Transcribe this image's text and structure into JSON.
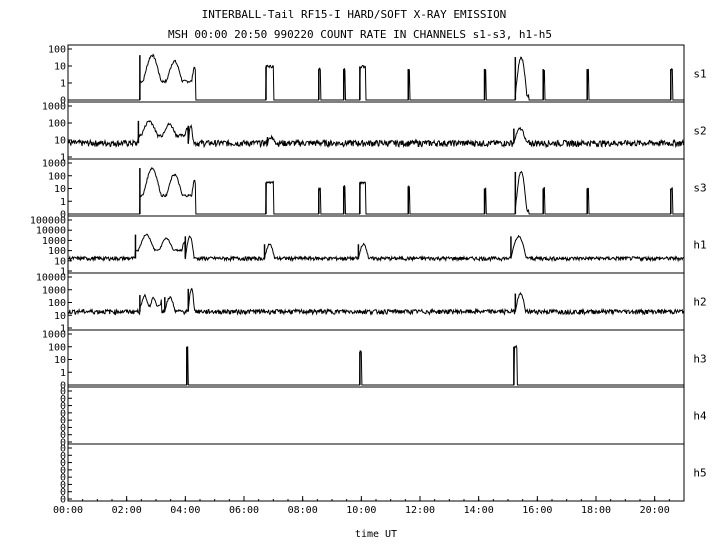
{
  "chart_data": {
    "type": "line",
    "title": "INTERBALL-Tail RF15-I HARD/SOFT X-RAY EMISSION",
    "subtitle": "MSH 00:00 20:50 990220  COUNT RATE IN CHANNELS s1-s3, h1-h5",
    "xlabel": "time UT",
    "x_ticks": [
      "00:00",
      "02:00",
      "04:00",
      "06:00",
      "08:00",
      "10:00",
      "12:00",
      "14:00",
      "16:00",
      "18:00",
      "20:00"
    ],
    "xlim_hours": [
      0,
      21
    ],
    "y_scale": "log",
    "grid": false,
    "panels": [
      {
        "name": "s1",
        "yticks": [
          "100",
          "10",
          "1",
          "0"
        ],
        "ylim": [
          0.1,
          200
        ],
        "baseline": 0.1,
        "bursts": [
          {
            "start": 2.45,
            "end": 4.35,
            "peak": 80,
            "shape": "double"
          },
          {
            "start": 6.75,
            "end": 7.0,
            "peak": 15,
            "shape": "block"
          },
          {
            "start": 8.55,
            "end": 8.6,
            "peak": 10,
            "shape": "spike"
          },
          {
            "start": 9.4,
            "end": 9.45,
            "peak": 10,
            "shape": "spike"
          },
          {
            "start": 9.95,
            "end": 10.15,
            "peak": 15,
            "shape": "block"
          },
          {
            "start": 11.6,
            "end": 11.65,
            "peak": 10,
            "shape": "spike"
          },
          {
            "start": 14.2,
            "end": 14.25,
            "peak": 10,
            "shape": "spike"
          },
          {
            "start": 15.25,
            "end": 15.7,
            "peak": 60,
            "shape": "hump"
          },
          {
            "start": 16.2,
            "end": 16.25,
            "peak": 10,
            "shape": "spike"
          },
          {
            "start": 17.7,
            "end": 17.75,
            "peak": 10,
            "shape": "spike"
          },
          {
            "start": 20.55,
            "end": 20.6,
            "peak": 10,
            "shape": "spike"
          }
        ]
      },
      {
        "name": "s2",
        "yticks": [
          "1000",
          "100",
          "10",
          "1"
        ],
        "ylim": [
          0.7,
          1000
        ],
        "baseline": 5,
        "bursts": [
          {
            "start": 2.4,
            "end": 4.1,
            "peak": 120,
            "shape": "double"
          },
          {
            "start": 4.1,
            "end": 4.3,
            "peak": 60,
            "shape": "hump"
          },
          {
            "start": 6.8,
            "end": 7.1,
            "peak": 12,
            "shape": "hump"
          },
          {
            "start": 15.2,
            "end": 15.7,
            "peak": 40,
            "shape": "hump"
          }
        ]
      },
      {
        "name": "s3",
        "yticks": [
          "1000",
          "100",
          "10",
          "1",
          "0"
        ],
        "ylim": [
          0.1,
          1000
        ],
        "baseline": 0.1,
        "bursts": [
          {
            "start": 2.45,
            "end": 4.35,
            "peak": 400,
            "shape": "double"
          },
          {
            "start": 6.75,
            "end": 7.0,
            "peak": 30,
            "shape": "block"
          },
          {
            "start": 8.55,
            "end": 8.6,
            "peak": 10,
            "shape": "spike"
          },
          {
            "start": 9.4,
            "end": 9.45,
            "peak": 15,
            "shape": "spike"
          },
          {
            "start": 9.95,
            "end": 10.15,
            "peak": 30,
            "shape": "block"
          },
          {
            "start": 11.6,
            "end": 11.65,
            "peak": 15,
            "shape": "spike"
          },
          {
            "start": 14.2,
            "end": 14.25,
            "peak": 10,
            "shape": "spike"
          },
          {
            "start": 15.25,
            "end": 15.7,
            "peak": 200,
            "shape": "hump"
          },
          {
            "start": 16.2,
            "end": 16.25,
            "peak": 10,
            "shape": "spike"
          },
          {
            "start": 17.7,
            "end": 17.75,
            "peak": 10,
            "shape": "spike"
          },
          {
            "start": 20.55,
            "end": 20.6,
            "peak": 10,
            "shape": "spike"
          }
        ]
      },
      {
        "name": "h1",
        "yticks": [
          "100000",
          "10000",
          "1000",
          "100",
          "10",
          "1"
        ],
        "ylim": [
          0.5,
          100000
        ],
        "baseline": 10,
        "bursts": [
          {
            "start": 2.3,
            "end": 4.0,
            "peak": 3000,
            "shape": "double"
          },
          {
            "start": 4.0,
            "end": 4.35,
            "peak": 2000,
            "shape": "hump"
          },
          {
            "start": 6.7,
            "end": 7.1,
            "peak": 300,
            "shape": "hump"
          },
          {
            "start": 9.9,
            "end": 10.3,
            "peak": 300,
            "shape": "hump"
          },
          {
            "start": 15.1,
            "end": 15.7,
            "peak": 2000,
            "shape": "hump"
          }
        ]
      },
      {
        "name": "h2",
        "yticks": [
          "10000",
          "1000",
          "100",
          "10",
          "1"
        ],
        "ylim": [
          0.5,
          10000
        ],
        "baseline": 12,
        "bursts": [
          {
            "start": 2.45,
            "end": 3.2,
            "peak": 300,
            "shape": "double"
          },
          {
            "start": 3.3,
            "end": 3.7,
            "peak": 200,
            "shape": "hump"
          },
          {
            "start": 4.1,
            "end": 4.35,
            "peak": 1000,
            "shape": "hump"
          },
          {
            "start": 15.25,
            "end": 15.65,
            "peak": 400,
            "shape": "hump"
          }
        ]
      },
      {
        "name": "h3",
        "yticks": [
          "1000",
          "100",
          "10",
          "1",
          "0"
        ],
        "ylim": [
          0.1,
          1000
        ],
        "baseline": 0.1,
        "bursts": [
          {
            "start": 4.05,
            "end": 4.1,
            "peak": 100,
            "shape": "spike"
          },
          {
            "start": 9.95,
            "end": 10.0,
            "peak": 40,
            "shape": "spike"
          },
          {
            "start": 15.2,
            "end": 15.3,
            "peak": 100,
            "shape": "spike"
          }
        ]
      },
      {
        "name": "h4",
        "yticks": [
          "0",
          "0",
          "0",
          "0",
          "0",
          "0",
          "0",
          "0"
        ],
        "ylim": [
          0,
          1
        ],
        "baseline": 0,
        "bursts": []
      },
      {
        "name": "h5",
        "yticks": [
          "0",
          "0",
          "0",
          "0",
          "0",
          "0",
          "0",
          "0"
        ],
        "ylim": [
          0,
          1
        ],
        "baseline": 0,
        "bursts": []
      }
    ]
  }
}
